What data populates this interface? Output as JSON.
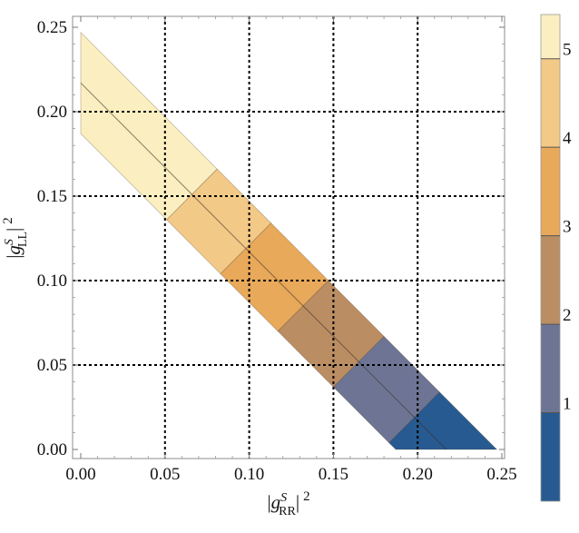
{
  "chart_data": {
    "type": "heatmap",
    "title": "",
    "xlabel": {
      "base": "|g",
      "sup": "S",
      "sub": "RR",
      "tail": "|",
      "power": "2"
    },
    "ylabel": {
      "base": "|g",
      "sup": "S",
      "sub": "LL",
      "tail": "|",
      "power": "2"
    },
    "xlim": [
      0,
      0.25
    ],
    "ylim": [
      0,
      0.25
    ],
    "xticks": [
      "0.00",
      "0.05",
      "0.10",
      "0.15",
      "0.20",
      "0.25"
    ],
    "yticks": [
      "0.00",
      "0.05",
      "0.10",
      "0.15",
      "0.20",
      "0.25"
    ],
    "grid": "dashed at 0.05 intervals",
    "band": {
      "center_line": [
        [
          0.0,
          0.217
        ],
        [
          0.217,
          0.0
        ]
      ],
      "lower_edge": [
        [
          0.0,
          0.187
        ],
        [
          0.187,
          0.0
        ]
      ],
      "upper_edge": [
        [
          0.0,
          0.247
        ],
        [
          0.247,
          0.0
        ]
      ]
    },
    "segments": [
      {
        "level": 5,
        "color": "#fbefc1",
        "x_range": [
          0.0,
          0.068
        ]
      },
      {
        "level": 4,
        "color": "#f3c987",
        "x_range": [
          0.038,
          0.1
        ]
      },
      {
        "level": 3,
        "color": "#e8a95a",
        "x_range": [
          0.07,
          0.135
        ]
      },
      {
        "level": 2.5,
        "color": "#ba8d63",
        "x_range": [
          0.103,
          0.167
        ]
      },
      {
        "level": 1.5,
        "color": "#6d7494",
        "x_range": [
          0.137,
          0.2
        ]
      },
      {
        "level": 1,
        "color": "#275a91",
        "x_range": [
          0.17,
          0.247
        ]
      }
    ],
    "colorbar": {
      "range": [
        0,
        5.5
      ],
      "tick_labels": [
        "1",
        "2",
        "3",
        "4",
        "5"
      ],
      "tick_values": [
        1,
        2,
        3,
        4,
        5
      ],
      "bands": [
        {
          "from": 0,
          "to": 1,
          "color": "#275a91"
        },
        {
          "from": 1,
          "to": 2,
          "color": "#6d7494"
        },
        {
          "from": 2,
          "to": 3,
          "color": "#ba8d63"
        },
        {
          "from": 3,
          "to": 4,
          "color": "#e8a95a"
        },
        {
          "from": 4,
          "to": 5,
          "color": "#f3c987"
        },
        {
          "from": 5,
          "to": 5.5,
          "color": "#fbefc1"
        }
      ]
    }
  }
}
